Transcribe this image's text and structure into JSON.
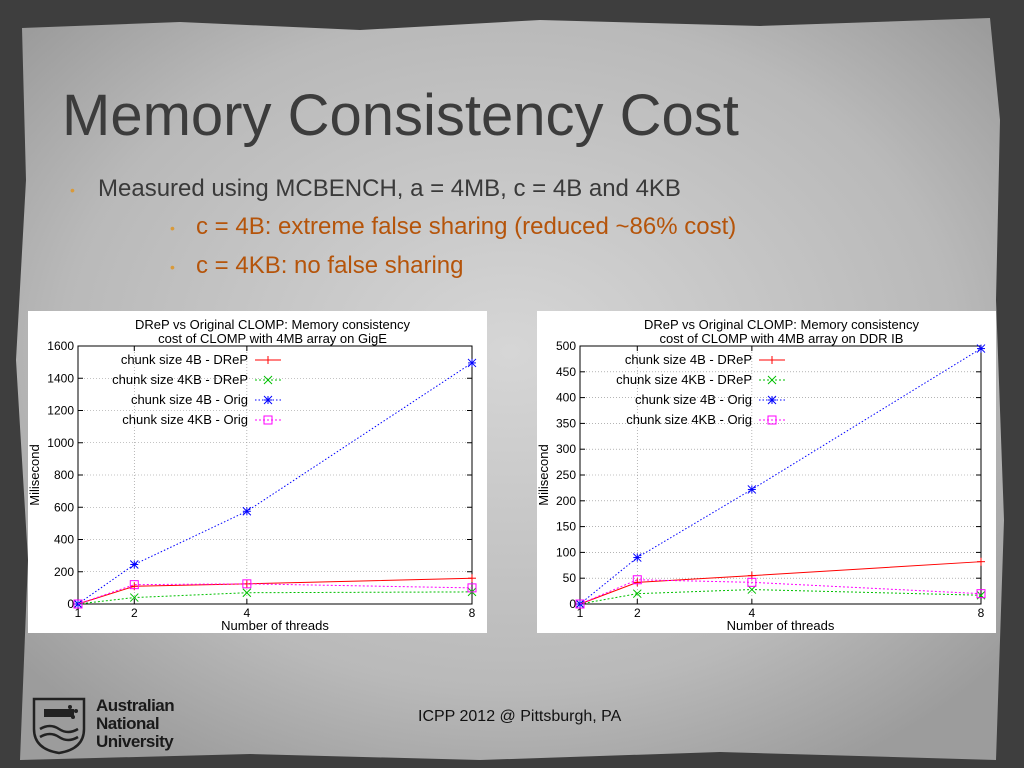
{
  "slide": {
    "title": "Memory Consistency Cost",
    "bullet_main": "Measured using MCBENCH, a = 4MB, c = 4B and 4KB",
    "sub_bullets": [
      "c = 4B: extreme false sharing (reduced ~86% cost)",
      "c = 4KB: no false sharing"
    ],
    "footer": "ICPP 2012 @ Pittsburgh, PA",
    "logo_lines": [
      "Australian",
      "National",
      "University"
    ]
  },
  "colors": {
    "title": "#3c3c3c",
    "sub_bullet": "#b5540a",
    "series": [
      "#ff0000",
      "#00c000",
      "#0000ff",
      "#ff00ff"
    ]
  },
  "chart_data": [
    {
      "type": "line",
      "title": [
        "DReP vs Original CLOMP: Memory consistency",
        "cost of CLOMP with 4MB array on GigE"
      ],
      "xlabel": "Number of threads",
      "ylabel": "Milisecond",
      "x": [
        1,
        2,
        4,
        8
      ],
      "x_ticks": [
        1,
        2,
        4,
        8
      ],
      "ylim": [
        0,
        1600
      ],
      "y_ticks": [
        0,
        200,
        400,
        600,
        800,
        1000,
        1200,
        1400,
        1600
      ],
      "grid": true,
      "legend_position": "top-left",
      "series": [
        {
          "name": "chunk size 4B - DReP",
          "values": [
            0,
            110,
            125,
            160
          ],
          "marker": "plus"
        },
        {
          "name": "chunk size 4KB - DReP",
          "values": [
            0,
            40,
            70,
            75
          ],
          "marker": "x"
        },
        {
          "name": "chunk size 4B - Orig",
          "values": [
            0,
            245,
            575,
            1495
          ],
          "marker": "star"
        },
        {
          "name": "chunk size 4KB - Orig",
          "values": [
            0,
            120,
            125,
            100
          ],
          "marker": "square"
        }
      ]
    },
    {
      "type": "line",
      "title": [
        "DReP vs Original CLOMP: Memory consistency",
        "cost of CLOMP with 4MB array on DDR IB"
      ],
      "xlabel": "Number of threads",
      "ylabel": "Milisecond",
      "x": [
        1,
        2,
        4,
        8
      ],
      "x_ticks": [
        1,
        2,
        4,
        8
      ],
      "ylim": [
        0,
        500
      ],
      "y_ticks": [
        0,
        50,
        100,
        150,
        200,
        250,
        300,
        350,
        400,
        450,
        500
      ],
      "grid": true,
      "legend_position": "top-left",
      "series": [
        {
          "name": "chunk size 4B - DReP",
          "values": [
            0,
            42,
            55,
            82
          ],
          "marker": "plus"
        },
        {
          "name": "chunk size 4KB - DReP",
          "values": [
            0,
            20,
            28,
            17
          ],
          "marker": "x"
        },
        {
          "name": "chunk size 4B - Orig",
          "values": [
            0,
            90,
            222,
            495
          ],
          "marker": "star"
        },
        {
          "name": "chunk size 4KB - Orig",
          "values": [
            0,
            47,
            42,
            20
          ],
          "marker": "square"
        }
      ]
    }
  ]
}
